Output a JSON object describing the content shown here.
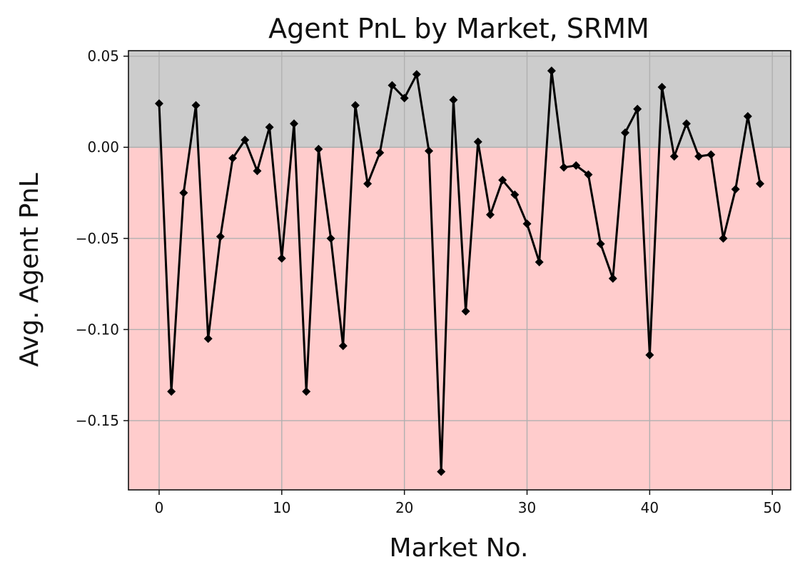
{
  "chart_data": {
    "type": "line",
    "title": "Agent PnL by Market, SRMM",
    "xlabel": "Market No.",
    "ylabel": "Avg. Agent PnL",
    "xlim": [
      -2.5,
      51.5
    ],
    "ylim": [
      -0.188,
      0.053
    ],
    "xticks": [
      0,
      10,
      20,
      30,
      40,
      50
    ],
    "xtick_labels": [
      "0",
      "10",
      "20",
      "30",
      "40",
      "50"
    ],
    "yticks": [
      0.05,
      0.0,
      -0.05,
      -0.1,
      -0.15
    ],
    "ytick_labels": [
      "0.05",
      "0.00",
      "−0.05",
      "−0.10",
      "−0.15"
    ],
    "grid": true,
    "positive_region_color": "#cccccc",
    "negative_region_color": "#ffcccc",
    "line_color": "#000000",
    "marker": "diamond",
    "x": [
      0,
      1,
      2,
      3,
      4,
      5,
      6,
      7,
      8,
      9,
      10,
      11,
      12,
      13,
      14,
      15,
      16,
      17,
      18,
      19,
      20,
      21,
      22,
      23,
      24,
      25,
      26,
      27,
      28,
      29,
      30,
      31,
      32,
      33,
      34,
      35,
      36,
      37,
      38,
      39,
      40,
      41,
      42,
      43,
      44,
      45,
      46,
      47,
      48,
      49
    ],
    "values": [
      0.024,
      -0.134,
      -0.025,
      0.023,
      -0.105,
      -0.049,
      -0.006,
      0.004,
      -0.013,
      0.011,
      -0.061,
      0.013,
      -0.134,
      -0.001,
      -0.05,
      -0.109,
      0.023,
      -0.02,
      -0.003,
      0.034,
      0.027,
      0.04,
      -0.002,
      -0.178,
      0.026,
      -0.09,
      0.003,
      -0.037,
      -0.018,
      -0.026,
      -0.042,
      -0.063,
      0.042,
      -0.011,
      -0.01,
      -0.015,
      -0.053,
      -0.072,
      0.008,
      0.021,
      -0.114,
      0.033,
      -0.005,
      0.013,
      -0.005,
      -0.004,
      -0.05,
      -0.023,
      0.017,
      -0.02
    ]
  }
}
